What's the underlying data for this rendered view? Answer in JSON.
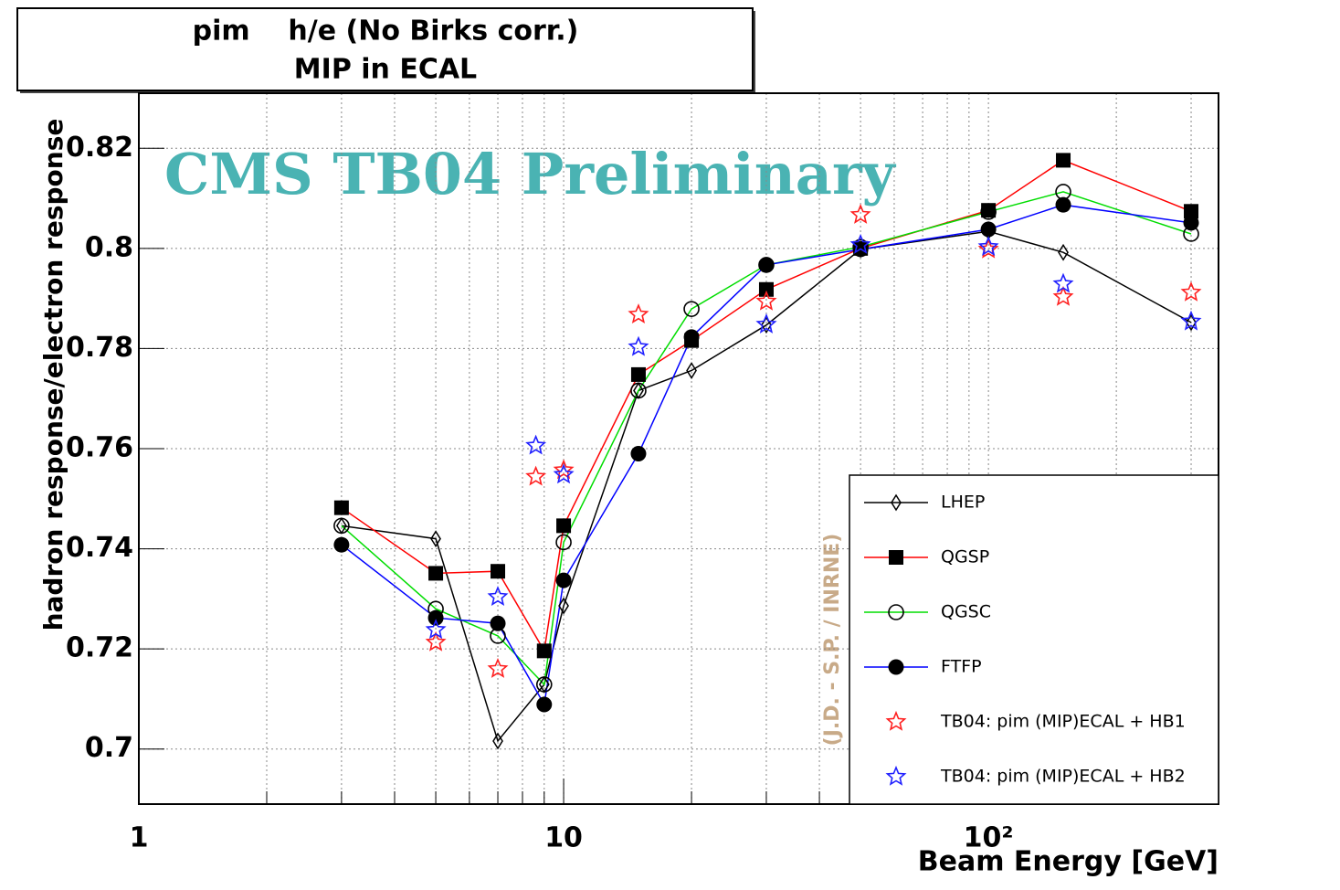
{
  "chart_data": {
    "type": "line",
    "title": "pim    h/e (No Birks corr.)",
    "subtitle": "MIP in ECAL",
    "watermark": "CMS TB04 Preliminary",
    "credit": "(J.D. - S.P. / INRNE)",
    "x_label": "Beam Energy [GeV]",
    "y_label": "hadron response/electron response",
    "xscale": "log",
    "xlim": [
      1,
      348
    ],
    "ylim": [
      0.689,
      0.831
    ],
    "xticks": [
      1,
      10,
      {
        "value": 100,
        "label": "10²"
      }
    ],
    "xminorticks": [
      2,
      3,
      4,
      5,
      6,
      7,
      8,
      9,
      20,
      30,
      40,
      50,
      60,
      70,
      80,
      90,
      200,
      300
    ],
    "yticks": [
      0.7,
      0.72,
      0.74,
      0.76,
      0.78,
      0.8,
      0.82
    ],
    "grid": true,
    "legend": "lower right",
    "series": [
      {
        "name": "LHEP",
        "color": "#000000",
        "marker": "diamond-open",
        "line": true,
        "x": [
          3,
          5,
          7,
          9,
          10,
          15,
          20,
          30,
          50,
          100,
          150,
          300
        ],
        "values": [
          0.7446,
          0.742,
          0.7016,
          0.7129,
          0.7286,
          0.7716,
          0.7756,
          0.7847,
          0.7998,
          0.8034,
          0.7992,
          0.7852
        ]
      },
      {
        "name": "QGSP",
        "color": "#ff0000",
        "marker": "square",
        "line": true,
        "x": [
          3,
          5,
          7,
          9,
          10,
          15,
          20,
          30,
          50,
          100,
          150,
          300
        ],
        "values": [
          0.7482,
          0.7351,
          0.7355,
          0.7196,
          0.7446,
          0.7748,
          0.7816,
          0.7918,
          0.8,
          0.8076,
          0.8176,
          0.8074
        ]
      },
      {
        "name": "QGSC",
        "color": "#00dd00",
        "marker": "circle-open",
        "line": true,
        "x": [
          3,
          5,
          7,
          9,
          10,
          15,
          20,
          30,
          50,
          100,
          150,
          300
        ],
        "values": [
          0.7446,
          0.728,
          0.7226,
          0.7129,
          0.7413,
          0.7716,
          0.7879,
          0.7967,
          0.8003,
          0.8073,
          0.8113,
          0.8029
        ]
      },
      {
        "name": "FTFP",
        "color": "#0000ff",
        "marker": "circle",
        "line": true,
        "x": [
          3,
          5,
          7,
          9,
          10,
          15,
          20,
          30,
          50,
          100,
          150,
          300
        ],
        "values": [
          0.7408,
          0.7262,
          0.7251,
          0.7089,
          0.7337,
          0.759,
          0.7823,
          0.7967,
          0.7998,
          0.8038,
          0.8087,
          0.8051
        ]
      },
      {
        "name": "TB04: pim (MIP)ECAL + HB1",
        "color": "#ff2020",
        "marker": "star-open",
        "line": false,
        "x": [
          5,
          7,
          8.6,
          10,
          15,
          30,
          50,
          100,
          150,
          300
        ],
        "values": [
          0.7213,
          0.716,
          0.7544,
          0.7557,
          0.7868,
          0.7894,
          0.8067,
          0.7998,
          0.7903,
          0.7912
        ]
      },
      {
        "name": "TB04: pim (MIP)ECAL + HB2",
        "color": "#2020ff",
        "marker": "star-open",
        "line": false,
        "x": [
          5,
          7,
          8.6,
          10,
          15,
          30,
          50,
          100,
          150,
          300
        ],
        "values": [
          0.7238,
          0.7304,
          0.7606,
          0.7548,
          0.7803,
          0.7848,
          0.8007,
          0.8003,
          0.7929,
          0.7854
        ]
      }
    ]
  }
}
